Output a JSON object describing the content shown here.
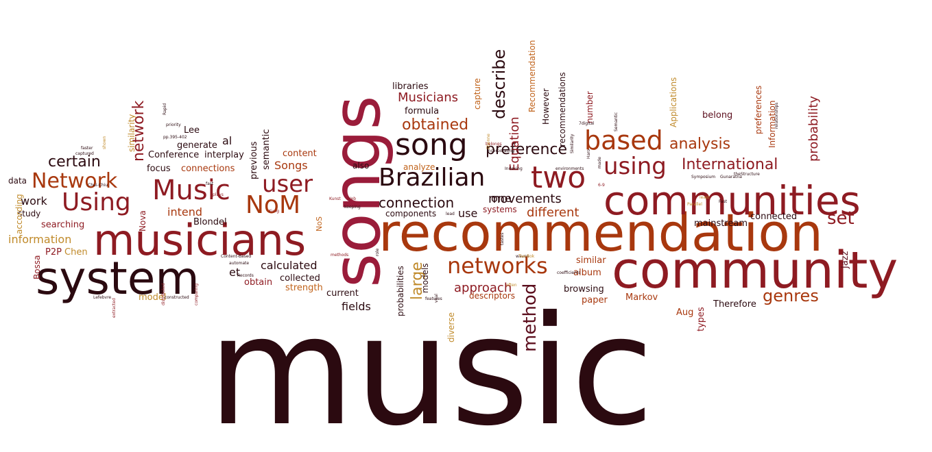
{
  "palette": {
    "dark": "#2b0a10",
    "maroon": "#5c0f1e",
    "crimson": "#8e1b22",
    "rose": "#9a1c3a",
    "rust": "#a8380e",
    "orange": "#c0621a",
    "gold": "#c08a2a"
  },
  "words": [
    {
      "text": "music",
      "color": "dark",
      "size": 1
    },
    {
      "text": "songs",
      "color": "rose",
      "size": 1
    },
    {
      "text": "recommendation",
      "color": "rust",
      "size": 1
    },
    {
      "text": "community",
      "color": "crimson",
      "size": 1
    },
    {
      "text": "communities",
      "color": "crimson",
      "size": 1
    },
    {
      "text": "musicians",
      "color": "crimson",
      "size": 1
    },
    {
      "text": "system",
      "color": "dark",
      "size": 1
    },
    {
      "text": "song",
      "color": "dark",
      "size": 1
    },
    {
      "text": "Brazilian",
      "color": "dark",
      "size": 1
    },
    {
      "text": "two",
      "color": "crimson",
      "size": 1
    },
    {
      "text": "based",
      "color": "rust",
      "size": 1
    },
    {
      "text": "using",
      "color": "crimson",
      "size": 1
    },
    {
      "text": "Music",
      "color": "crimson",
      "size": 1
    },
    {
      "text": "NoM",
      "color": "rust",
      "size": 1
    },
    {
      "text": "user",
      "color": "crimson",
      "size": 1
    },
    {
      "text": "Using",
      "color": "crimson",
      "size": 1
    },
    {
      "text": "Network",
      "color": "rust",
      "size": 1
    },
    {
      "text": "networks",
      "color": "rust",
      "size": 1
    },
    {
      "text": "set",
      "color": "crimson",
      "size": 1
    },
    {
      "text": "method",
      "color": "maroon",
      "size": 1
    },
    {
      "text": "large",
      "color": "gold",
      "size": 1
    },
    {
      "text": "genres",
      "color": "rust",
      "size": 1
    },
    {
      "text": "International",
      "color": "crimson",
      "size": 1
    },
    {
      "text": "analysis",
      "color": "rust",
      "size": 1
    },
    {
      "text": "preference",
      "color": "dark",
      "size": 1
    },
    {
      "text": "obtained",
      "color": "rust",
      "size": 1
    },
    {
      "text": "connection",
      "color": "dark",
      "size": 1
    },
    {
      "text": "movements",
      "color": "dark",
      "size": 1
    },
    {
      "text": "describe",
      "color": "dark",
      "size": 1
    },
    {
      "text": "certain",
      "color": "dark",
      "size": 1
    },
    {
      "text": "network",
      "color": "crimson",
      "size": 1
    },
    {
      "text": "approach",
      "color": "crimson",
      "size": 1
    },
    {
      "text": "different",
      "color": "rust",
      "size": 1
    },
    {
      "text": "Equation",
      "color": "crimson",
      "size": 1
    },
    {
      "text": "Musicians",
      "color": "crimson",
      "size": 1
    },
    {
      "text": "probability",
      "color": "crimson",
      "size": 1
    },
    {
      "text": "information",
      "color": "gold",
      "size": 1
    },
    {
      "text": "calculated",
      "color": "dark",
      "size": 1
    },
    {
      "text": "fields",
      "color": "dark",
      "size": 1
    },
    {
      "text": "work",
      "color": "dark",
      "size": 1
    },
    {
      "text": "intend",
      "color": "rust",
      "size": 1
    },
    {
      "text": "Songs",
      "color": "rust",
      "size": 1
    },
    {
      "text": "al",
      "color": "dark",
      "size": 1
    },
    {
      "text": "et",
      "color": "dark",
      "size": 1
    },
    {
      "text": "use",
      "color": "dark",
      "size": 1
    },
    {
      "text": "one",
      "color": "dark",
      "size": 1
    },
    {
      "text": "similar",
      "color": "rust",
      "size": 1
    },
    {
      "text": "album",
      "color": "rust",
      "size": 1
    },
    {
      "text": "browsing",
      "color": "dark",
      "size": 1
    },
    {
      "text": "paper",
      "color": "rust",
      "size": 1
    },
    {
      "text": "Markov",
      "color": "rust",
      "size": 1
    },
    {
      "text": "Therefore",
      "color": "dark",
      "size": 1
    },
    {
      "text": "Aug",
      "color": "rust",
      "size": 1
    },
    {
      "text": "types",
      "color": "crimson",
      "size": 1
    },
    {
      "text": "Jazz",
      "color": "maroon",
      "size": 1
    },
    {
      "text": "connected",
      "color": "dark",
      "size": 1
    },
    {
      "text": "mainstream",
      "color": "dark",
      "size": 1
    },
    {
      "text": "belong",
      "color": "maroon",
      "size": 1
    },
    {
      "text": "Applications",
      "color": "gold",
      "size": 1
    },
    {
      "text": "preferences",
      "color": "rust",
      "size": 1
    },
    {
      "text": "Information",
      "color": "rust",
      "size": 1
    },
    {
      "text": "recommendations",
      "color": "dark",
      "size": 1
    },
    {
      "text": "Recommendation",
      "color": "orange",
      "size": 1
    },
    {
      "text": "However",
      "color": "dark",
      "size": 1
    },
    {
      "text": "number",
      "color": "crimson",
      "size": 1
    },
    {
      "text": "capture",
      "color": "orange",
      "size": 1
    },
    {
      "text": "formula",
      "color": "dark",
      "size": 1
    },
    {
      "text": "libraries",
      "color": "dark",
      "size": 1
    },
    {
      "text": "generate",
      "color": "dark",
      "size": 1
    },
    {
      "text": "Lee",
      "color": "dark",
      "size": 1
    },
    {
      "text": "semantic",
      "color": "dark",
      "size": 1
    },
    {
      "text": "previous",
      "color": "dark",
      "size": 1
    },
    {
      "text": "content",
      "color": "rust",
      "size": 1
    },
    {
      "text": "interplay",
      "color": "dark",
      "size": 1
    },
    {
      "text": "Conference",
      "color": "dark",
      "size": 1
    },
    {
      "text": "focus",
      "color": "dark",
      "size": 1
    },
    {
      "text": "connections",
      "color": "rust",
      "size": 1
    },
    {
      "text": "Blondel",
      "color": "dark",
      "size": 1
    },
    {
      "text": "searching",
      "color": "crimson",
      "size": 1
    },
    {
      "text": "P2P",
      "color": "crimson",
      "size": 1
    },
    {
      "text": "Chen",
      "color": "gold",
      "size": 1
    },
    {
      "text": "obtain",
      "color": "crimson",
      "size": 1
    },
    {
      "text": "collected",
      "color": "dark",
      "size": 1
    },
    {
      "text": "strength",
      "color": "orange",
      "size": 1
    },
    {
      "text": "current",
      "color": "dark",
      "size": 1
    },
    {
      "text": "model",
      "color": "gold",
      "size": 1
    },
    {
      "text": "Bossa",
      "color": "crimson",
      "size": 1
    },
    {
      "text": "study",
      "color": "dark",
      "size": 1
    },
    {
      "text": "according",
      "color": "gold",
      "size": 1
    },
    {
      "text": "data",
      "color": "dark",
      "size": 1
    },
    {
      "text": "similarity",
      "color": "gold",
      "size": 1
    },
    {
      "text": "Nova",
      "color": "crimson",
      "size": 1
    },
    {
      "text": "also",
      "color": "dark",
      "size": 1
    },
    {
      "text": "analyze",
      "color": "orange",
      "size": 1
    },
    {
      "text": "components",
      "color": "dark",
      "size": 1
    },
    {
      "text": "systems",
      "color": "crimson",
      "size": 1
    },
    {
      "text": "probabilities",
      "color": "dark",
      "size": 1
    },
    {
      "text": "models",
      "color": "dark",
      "size": 1
    },
    {
      "text": "descriptors",
      "color": "rust",
      "size": 1
    },
    {
      "text": "diverse",
      "color": "gold",
      "size": 1
    },
    {
      "text": "NoS",
      "color": "orange",
      "size": 1
    },
    {
      "text": "pp.395-402",
      "color": "dark",
      "size": 1
    },
    {
      "text": "priority",
      "color": "dark",
      "size": 1
    },
    {
      "text": "Rapid",
      "color": "dark",
      "size": 1
    },
    {
      "text": "faster",
      "color": "dark",
      "size": 1
    },
    {
      "text": "captured",
      "color": "dark",
      "size": 1
    },
    {
      "text": "shown",
      "color": "gold",
      "size": 1
    },
    {
      "text": "Chui-Chiu",
      "color": "dark",
      "size": 1
    },
    {
      "text": "fast",
      "color": "dark",
      "size": 1
    },
    {
      "text": "plays",
      "color": "crimson",
      "size": 1
    },
    {
      "text": "Kung",
      "color": "crimson",
      "size": 1
    },
    {
      "text": "Content-Based",
      "color": "dark",
      "size": 1
    },
    {
      "text": "automate",
      "color": "dark",
      "size": 1
    },
    {
      "text": "Records",
      "color": "dark",
      "size": 1
    },
    {
      "text": "comparing",
      "color": "crimson",
      "size": 1
    },
    {
      "text": "distributed",
      "color": "crimson",
      "size": 1
    },
    {
      "text": "constructed",
      "color": "dark",
      "size": 1
    },
    {
      "text": "Lefebvre",
      "color": "dark",
      "size": 1
    },
    {
      "text": "extracted",
      "color": "crimson",
      "size": 1
    },
    {
      "text": "Kunst",
      "color": "crimson",
      "size": 1
    },
    {
      "text": "Web",
      "color": "crimson",
      "size": 1
    },
    {
      "text": "keeping",
      "color": "dark",
      "size": 1
    },
    {
      "text": "methods",
      "color": "crimson",
      "size": 1
    },
    {
      "text": "role",
      "color": "dark",
      "size": 1
    },
    {
      "text": "lead",
      "color": "dark",
      "size": 1
    },
    {
      "text": "features",
      "color": "dark",
      "size": 1
    },
    {
      "text": "vital",
      "color": "dark",
      "size": 1
    },
    {
      "text": "belongs",
      "color": "crimson",
      "size": 1
    },
    {
      "text": "Etienne",
      "color": "gold",
      "size": 1
    },
    {
      "text": "incorporating",
      "color": "dark",
      "size": 1
    },
    {
      "text": "Indexing",
      "color": "dark",
      "size": 1
    },
    {
      "text": "environments",
      "color": "dark",
      "size": 1
    },
    {
      "text": "tastes",
      "color": "dark",
      "size": 1
    },
    {
      "text": "waves",
      "color": "dark",
      "size": 1
    },
    {
      "text": "Tae-Bok",
      "color": "gold",
      "size": 1
    },
    {
      "text": "often",
      "color": "gold",
      "size": 1
    },
    {
      "text": "coefficients",
      "color": "dark",
      "size": 1
    },
    {
      "text": "7digital",
      "color": "dark",
      "size": 1
    },
    {
      "text": "Similarity",
      "color": "dark",
      "size": 1
    },
    {
      "text": "Haro",
      "color": "dark",
      "size": 1
    },
    {
      "text": "made",
      "color": "dark",
      "size": 1
    },
    {
      "text": "6-9",
      "color": "crimson",
      "size": 1
    },
    {
      "text": "Semantic",
      "color": "dark",
      "size": 1
    },
    {
      "text": "Symposium",
      "color": "dark",
      "size": 1
    },
    {
      "text": "Gunaratna",
      "color": "dark",
      "size": 1
    },
    {
      "text": "theStructure",
      "color": "dark",
      "size": 1
    },
    {
      "text": "relationships",
      "color": "dark",
      "size": 1
    },
    {
      "text": "least",
      "color": "gold",
      "size": 1
    },
    {
      "text": "Fast",
      "color": "dark",
      "size": 1
    },
    {
      "text": "Parallel",
      "color": "gold",
      "size": 1
    }
  ]
}
